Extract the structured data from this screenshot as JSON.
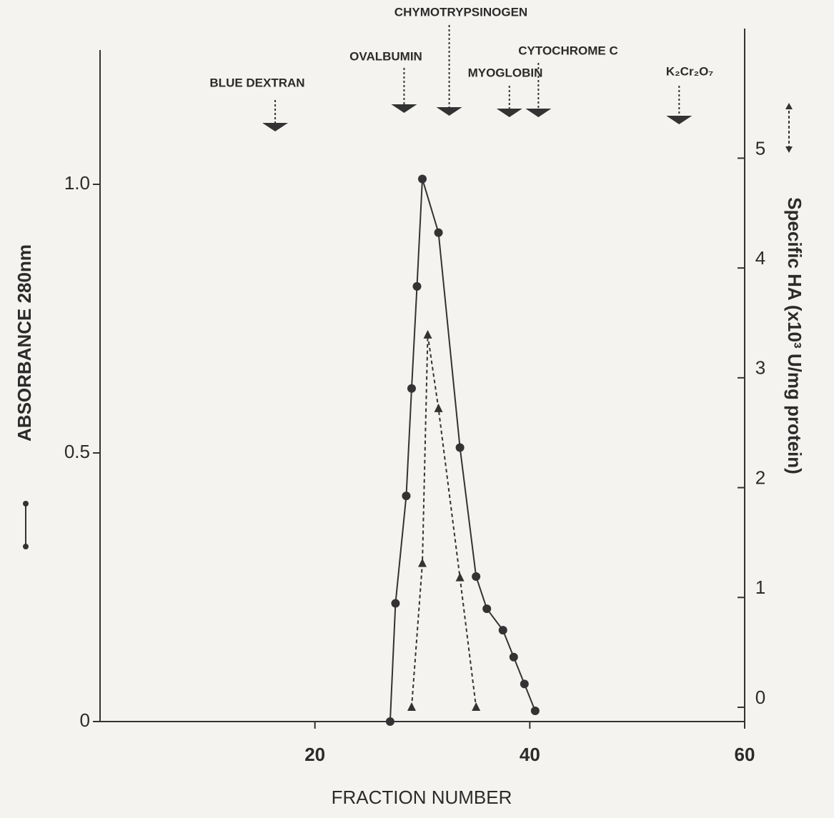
{
  "chart_data": {
    "type": "line",
    "x_label": "FRACTION NUMBER",
    "y_label": "ABSORBANCE 280nm",
    "y2_label": "Specific HA (x10³ U/mg protein)",
    "xlim": [
      0,
      60
    ],
    "xticks": [
      20,
      40,
      60
    ],
    "ylim": [
      0,
      1.25
    ],
    "yticks": [
      0,
      0.5,
      {
        "value": 1,
        "label": "1.0"
      }
    ],
    "y2lim": [
      -0.13,
      6.18
    ],
    "y2ticks": [
      0,
      1,
      2,
      3,
      4,
      5
    ],
    "series": [
      {
        "marker": "circle",
        "dash": false,
        "color": "#333333",
        "x": [
          27,
          27.5,
          28.5,
          29,
          29.5,
          30,
          31.5,
          33.5,
          35,
          36,
          37.5,
          38.5,
          39.5,
          40.5
        ],
        "values": [
          0,
          0.22,
          0.42,
          0.62,
          0.81,
          1.01,
          0.91,
          0.51,
          0.27,
          0.21,
          0.17,
          0.12,
          0.07,
          0.02
        ]
      },
      {
        "marker": "triangle",
        "dash": true,
        "color": "#333333",
        "axis": "y2",
        "x": [
          29,
          30,
          30.5,
          31.5,
          33.5,
          35
        ],
        "values": [
          0,
          1.31,
          3.39,
          2.72,
          1.18,
          0
        ]
      }
    ],
    "annotations": [
      {
        "label": "BLUE DEXTRAN",
        "x": 16.3
      },
      {
        "label": "OVALBUMIN",
        "x": 28.3
      },
      {
        "label": "CHYMOTRYPSINOGEN",
        "x": 32.5
      },
      {
        "label": "MYOGLOBIN",
        "x": 38.1
      },
      {
        "label": "CYTOCHROME C",
        "x": 40.8
      },
      {
        "label": "K₂Cr₂O₇",
        "x": 53.9
      }
    ]
  }
}
